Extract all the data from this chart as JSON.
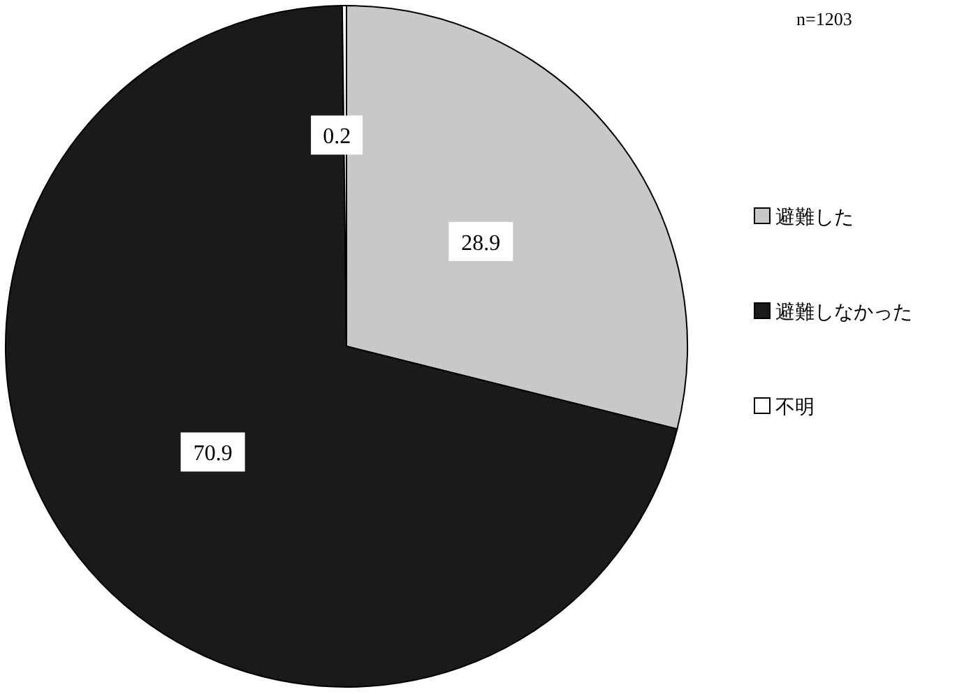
{
  "chart_data": {
    "type": "pie",
    "categories": [
      "避難した",
      "避難しなかった",
      "不明"
    ],
    "values": [
      28.9,
      70.9,
      0.2
    ],
    "colors": [
      "#c8c8c8",
      "#1a1a1a",
      "#ffffff"
    ],
    "data_labels": true,
    "legend": "right",
    "annotations": [
      "n=1203"
    ]
  }
}
